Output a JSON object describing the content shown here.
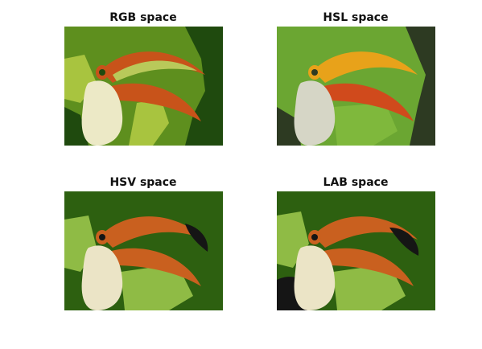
{
  "figure": {
    "panels": [
      {
        "title": "RGB space",
        "palette": {
          "bg_dark": "#1f4a0e",
          "bg_green": "#5e8f1e",
          "light_green": "#a8c43f",
          "beak_orange": "#c8531a",
          "beak_light": "#b9c95a",
          "white": "#ece9c6"
        }
      },
      {
        "title": "HSL space",
        "palette": {
          "bg_dark": "#2d3a22",
          "bg_green": "#6ba632",
          "light_green": "#7fb83c",
          "beak_orange": "#d04a1c",
          "beak_yellow": "#e8a21a",
          "white": "#d6d6c6"
        }
      },
      {
        "title": "HSV space",
        "palette": {
          "bg_dark": "#2d6010",
          "bg_green": "#2d6010",
          "light_green": "#8fbb45",
          "beak_orange": "#c9601f",
          "black": "#151515",
          "white": "#ebe4c6"
        }
      },
      {
        "title": "LAB space",
        "palette": {
          "bg_dark": "#2d6010",
          "bg_green": "#2d6010",
          "light_green": "#8fbb45",
          "beak_orange": "#c9601f",
          "black": "#151515",
          "white": "#ebe4c6"
        }
      }
    ]
  }
}
